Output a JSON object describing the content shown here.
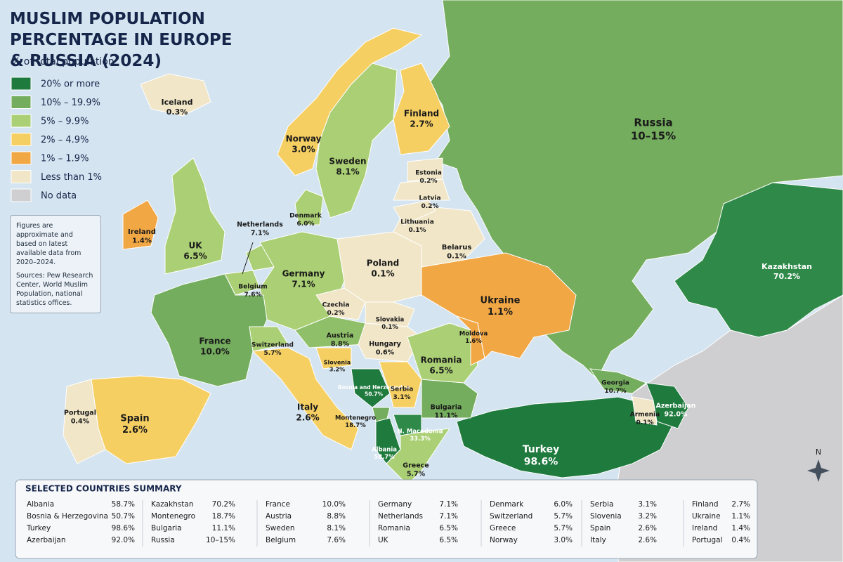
{
  "title": "MUSLIM POPULATION PERCENTAGE IN EUROPE & RUSSIA (2024)",
  "subtitle": "% of total population",
  "legend": [
    {
      "label": "20% or more",
      "color": "#1f7a3e"
    },
    {
      "label": "10% – 19.9%",
      "color": "#74ad5e"
    },
    {
      "label": "5% – 9.9%",
      "color": "#aacf74"
    },
    {
      "label": "2% – 4.9%",
      "color": "#f6cf63"
    },
    {
      "label": "1% – 1.9%",
      "color": "#f2a745"
    },
    {
      "label": "Less than 1%",
      "color": "#f1e6c8"
    },
    {
      "label": "No data",
      "color": "#cfcfd1"
    }
  ],
  "note": "Figures are approximate and based on latest available data from 2020–2024.",
  "sources": "Sources: Pew Research Center, World Muslim Population, national statistics offices.",
  "compass": "N",
  "countries": [
    {
      "name": "Russia",
      "value": "10–15%",
      "color": "#74ad5e"
    },
    {
      "name": "Kazakhstan",
      "value": "70.2%",
      "color": "#2f8a4a"
    },
    {
      "name": "Turkey",
      "value": "98.6%",
      "color": "#1f7a3e"
    },
    {
      "name": "Georgia",
      "value": "10.7%",
      "color": "#74ad5e"
    },
    {
      "name": "Armenia",
      "value": "0.1%",
      "color": "#f1e6c8"
    },
    {
      "name": "Azerbaijan",
      "value": "92.0%",
      "color": "#1f7a3e"
    },
    {
      "name": "Finland",
      "value": "2.7%",
      "color": "#f6cf63"
    },
    {
      "name": "Norway",
      "value": "3.0%",
      "color": "#f6cf63"
    },
    {
      "name": "Sweden",
      "value": "8.1%",
      "color": "#aacf74"
    },
    {
      "name": "Iceland",
      "value": "0.3%",
      "color": "#f1e6c8"
    },
    {
      "name": "Ireland",
      "value": "1.4%",
      "color": "#f2a745"
    },
    {
      "name": "UK",
      "value": "6.5%",
      "color": "#aacf74"
    },
    {
      "name": "Denmark",
      "value": "6.0%",
      "color": "#aacf74"
    },
    {
      "name": "Netherlands",
      "value": "7.1%",
      "color": "#aacf74"
    },
    {
      "name": "Belgium",
      "value": "7.6%",
      "color": "#aacf74"
    },
    {
      "name": "Germany",
      "value": "7.1%",
      "color": "#aacf74"
    },
    {
      "name": "France",
      "value": "10.0%",
      "color": "#74ad5e"
    },
    {
      "name": "Spain",
      "value": "2.6%",
      "color": "#f6cf63"
    },
    {
      "name": "Portugal",
      "value": "0.4%",
      "color": "#f1e6c8"
    },
    {
      "name": "Switzerland",
      "value": "5.7%",
      "color": "#aacf74"
    },
    {
      "name": "Italy",
      "value": "2.6%",
      "color": "#f6cf63"
    },
    {
      "name": "Austria",
      "value": "8.8%",
      "color": "#8fbf68"
    },
    {
      "name": "Czechia",
      "value": "0.2%",
      "color": "#f1e6c8"
    },
    {
      "name": "Poland",
      "value": "0.1%",
      "color": "#f1e6c8"
    },
    {
      "name": "Slovakia",
      "value": "0.1%",
      "color": "#f1e6c8"
    },
    {
      "name": "Hungary",
      "value": "0.6%",
      "color": "#f1e6c8"
    },
    {
      "name": "Slovenia",
      "value": "3.2%",
      "color": "#f6cf63"
    },
    {
      "name": "Bosnia and Herzegovina",
      "value": "50.7%",
      "color": "#1f7a3e"
    },
    {
      "name": "Serbia",
      "value": "3.1%",
      "color": "#f6cf63"
    },
    {
      "name": "Montenegro",
      "value": "18.7%",
      "color": "#74ad5e"
    },
    {
      "name": "Albania",
      "value": "58.7%",
      "color": "#1f7a3e"
    },
    {
      "name": "N. Macedonia",
      "value": "33.3%",
      "color": "#2f8a4a"
    },
    {
      "name": "Bulgaria",
      "value": "11.1%",
      "color": "#74ad5e"
    },
    {
      "name": "Greece",
      "value": "5.7%",
      "color": "#aacf74"
    },
    {
      "name": "Romania",
      "value": "6.5%",
      "color": "#aacf74"
    },
    {
      "name": "Moldova",
      "value": "1.6%",
      "color": "#f2a745"
    },
    {
      "name": "Ukraine",
      "value": "1.1%",
      "color": "#f2a745"
    },
    {
      "name": "Belarus",
      "value": "0.1%",
      "color": "#f1e6c8"
    },
    {
      "name": "Lithuania",
      "value": "0.1%",
      "color": "#f1e6c8"
    },
    {
      "name": "Latvia",
      "value": "0.2%",
      "color": "#f1e6c8"
    },
    {
      "name": "Estonia",
      "value": "0.2%",
      "color": "#f1e6c8"
    }
  ],
  "summary": {
    "title": "SELECTED COUNTRIES SUMMARY",
    "columns": [
      [
        [
          "Albania",
          "58.7%"
        ],
        [
          "Bosnia & Herzegovina",
          "50.7%"
        ],
        [
          "Turkey",
          "98.6%"
        ],
        [
          "Azerbaijan",
          "92.0%"
        ]
      ],
      [
        [
          "Kazakhstan",
          "70.2%"
        ],
        [
          "Montenegro",
          "18.7%"
        ],
        [
          "Bulgaria",
          "11.1%"
        ],
        [
          "Russia",
          "10–15%"
        ]
      ],
      [
        [
          "France",
          "10.0%"
        ],
        [
          "Austria",
          "8.8%"
        ],
        [
          "Sweden",
          "8.1%"
        ],
        [
          "Belgium",
          "7.6%"
        ]
      ],
      [
        [
          "Germany",
          "7.1%"
        ],
        [
          "Netherlands",
          "7.1%"
        ],
        [
          "Romania",
          "6.5%"
        ],
        [
          "UK",
          "6.5%"
        ]
      ],
      [
        [
          "Denmark",
          "6.0%"
        ],
        [
          "Switzerland",
          "5.7%"
        ],
        [
          "Greece",
          "5.7%"
        ],
        [
          "Norway",
          "3.0%"
        ]
      ],
      [
        [
          "Serbia",
          "3.1%"
        ],
        [
          "Slovenia",
          "3.2%"
        ],
        [
          "Spain",
          "2.6%"
        ],
        [
          "Italy",
          "2.6%"
        ]
      ],
      [
        [
          "Finland",
          "2.7%"
        ],
        [
          "Ukraine",
          "1.1%"
        ],
        [
          "Ireland",
          "1.4%"
        ],
        [
          "Portugal",
          "0.4%"
        ]
      ]
    ]
  }
}
